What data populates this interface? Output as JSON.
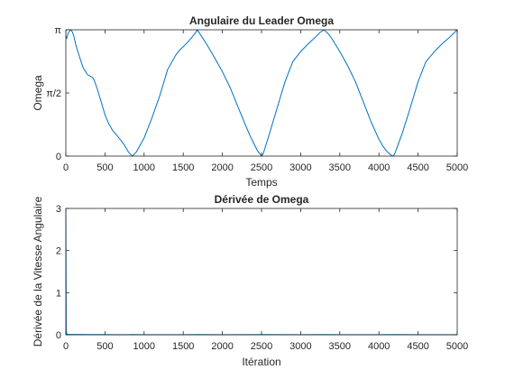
{
  "chart_data": [
    {
      "type": "line",
      "title": "Angulaire du Leader Omega",
      "xlabel": "Temps",
      "ylabel": "Omega",
      "xlim": [
        0,
        5000
      ],
      "ylim": [
        0,
        3.14159
      ],
      "grid": false,
      "x_ticks": [
        0,
        500,
        1000,
        1500,
        2000,
        2500,
        3000,
        3500,
        4000,
        4500,
        5000
      ],
      "x_tick_labels": [
        "0",
        "500",
        "1000",
        "1500",
        "2000",
        "2500",
        "3000",
        "3500",
        "4000",
        "4500",
        "5000"
      ],
      "y_ticks": [
        0,
        1.5708,
        3.14159
      ],
      "y_tick_labels": [
        "0",
        "π/2",
        "π"
      ],
      "line_color": "#0072BD",
      "series": [
        {
          "x": [
            0,
            10,
            30,
            60,
            80,
            100,
            130,
            170,
            220,
            280,
            340,
            360,
            400,
            450,
            500,
            550,
            600,
            650,
            700,
            750,
            800,
            850,
            900,
            1000,
            1100,
            1200,
            1300,
            1400,
            1450,
            1500,
            1550,
            1600,
            1650,
            1680,
            1720,
            1800,
            1900,
            2000,
            2100,
            2200,
            2300,
            2350,
            2400,
            2450,
            2500,
            2520,
            2600,
            2700,
            2800,
            2900,
            3000,
            3100,
            3200,
            3250,
            3300,
            3350,
            3400,
            3500,
            3600,
            3700,
            3800,
            3900,
            4000,
            4050,
            4100,
            4150,
            4180,
            4200,
            4300,
            4400,
            4500,
            4600,
            4700,
            4800,
            4900,
            5000
          ],
          "y": [
            3.0,
            2.92,
            3.06,
            3.14,
            3.1,
            3.0,
            2.75,
            2.5,
            2.2,
            2.02,
            1.96,
            1.9,
            1.68,
            1.36,
            1.03,
            0.8,
            0.63,
            0.52,
            0.4,
            0.27,
            0.1,
            0.0,
            0.1,
            0.45,
            0.95,
            1.5,
            2.15,
            2.5,
            2.63,
            2.72,
            2.82,
            2.93,
            3.05,
            3.14,
            3.02,
            2.78,
            2.45,
            2.1,
            1.7,
            1.22,
            0.75,
            0.52,
            0.32,
            0.13,
            0.0,
            0.05,
            0.55,
            1.2,
            1.85,
            2.35,
            2.6,
            2.8,
            2.98,
            3.08,
            3.14,
            3.05,
            2.92,
            2.6,
            2.25,
            1.85,
            1.35,
            0.85,
            0.42,
            0.25,
            0.12,
            0.03,
            0.0,
            0.05,
            0.58,
            1.2,
            1.85,
            2.35,
            2.58,
            2.78,
            2.95,
            3.14
          ]
        }
      ]
    },
    {
      "type": "line",
      "title": "Dérivée de Omega",
      "xlabel": "Itération",
      "ylabel": "Dérivée de la Vitesse Angulaire",
      "xlim": [
        0,
        5000
      ],
      "ylim": [
        0,
        3
      ],
      "grid": false,
      "x_ticks": [
        0,
        500,
        1000,
        1500,
        2000,
        2500,
        3000,
        3500,
        4000,
        4500,
        5000
      ],
      "x_tick_labels": [
        "0",
        "500",
        "1000",
        "1500",
        "2000",
        "2500",
        "3000",
        "3500",
        "4000",
        "4500",
        "5000"
      ],
      "y_ticks": [
        0,
        1,
        2,
        3
      ],
      "y_tick_labels": [
        "0",
        "1",
        "2",
        "3"
      ],
      "line_color": "#0072BD",
      "series": [
        {
          "x": [
            0,
            2,
            5,
            10,
            20,
            100,
            300,
            500,
            800,
            850,
            1000,
            1500,
            1700,
            2000,
            2500,
            3000,
            3300,
            3500,
            4000,
            4200,
            4500,
            5000
          ],
          "y": [
            3.0,
            2.0,
            0.15,
            0.03,
            0.01,
            0.008,
            0.005,
            0.004,
            0.003,
            0.006,
            0.003,
            0.003,
            0.005,
            0.003,
            0.004,
            0.003,
            0.005,
            0.003,
            0.003,
            0.005,
            0.003,
            0.003
          ]
        }
      ]
    }
  ]
}
